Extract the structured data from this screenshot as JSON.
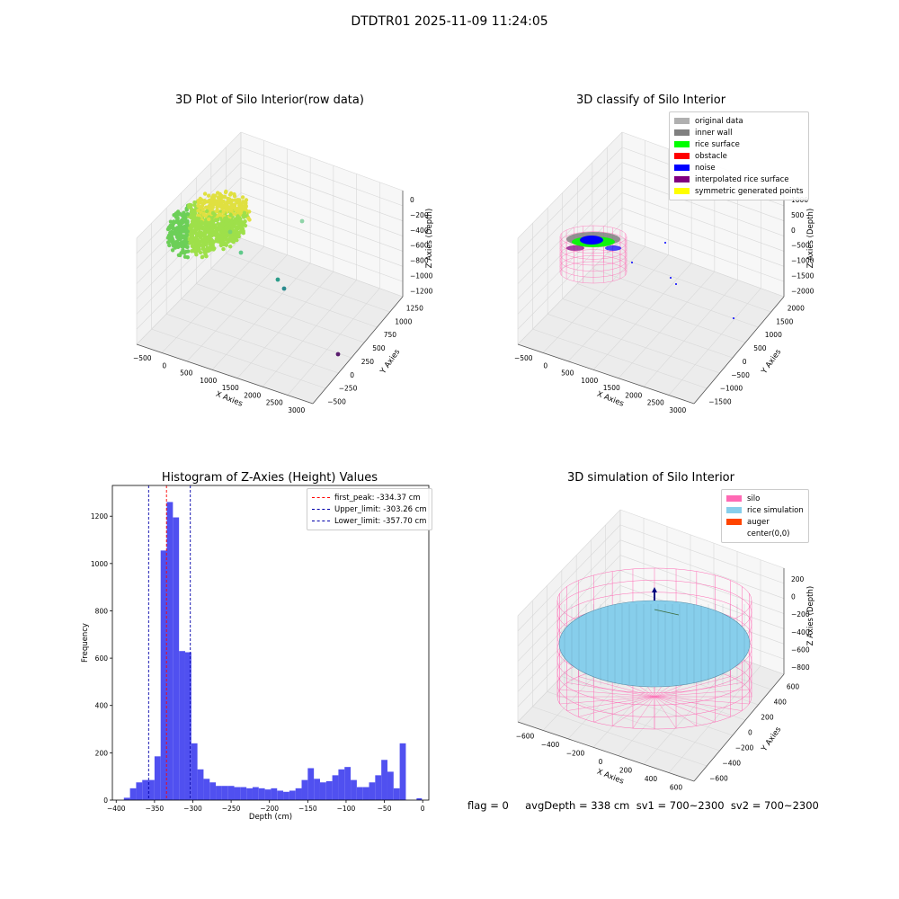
{
  "suptitle": "DTDTR01 2025-11-09 11:24:05",
  "footer": {
    "text": "flag = 0     avgDepth = 338 cm  sv1 = 700~2300  sv2 = 700~2300"
  },
  "colors": {
    "histogram_bar": "#5050f0",
    "first_peak_line": "#ff0000",
    "limit_line": "#0000aa",
    "silo_wire": "#ff69b4",
    "rice_surface_sim": "#87ceeb",
    "pane_face": "#f2f2f2",
    "grid": "#d8d8d8"
  },
  "chart_data": [
    {
      "type": "scatter",
      "title": "3D Plot of Silo Interior(row data)",
      "projection": "3d",
      "xlabel": "X Axies",
      "ylabel": "Y Axies",
      "zlabel": "Z Axies (Depth)",
      "x_ticks": [
        "−500",
        "0",
        "500",
        "1000",
        "1500",
        "2000",
        "2500",
        "3000"
      ],
      "y_ticks": [
        "−500",
        "−250",
        "0",
        "250",
        "500",
        "750",
        "1000",
        "1250"
      ],
      "z_ticks": [
        "0",
        "−200",
        "−400",
        "−600",
        "−800",
        "−1000",
        "−1200"
      ],
      "xlim": [
        -600,
        3200
      ],
      "ylim": [
        -600,
        1350
      ],
      "zlim": [
        -1300,
        50
      ],
      "colormap": "viridis",
      "points": [
        [
          -350,
          600,
          -350
        ],
        [
          -250,
          700,
          -330
        ],
        [
          -150,
          650,
          -320
        ],
        [
          0,
          550,
          -340
        ],
        [
          100,
          480,
          -350
        ],
        [
          -300,
          400,
          -360
        ],
        [
          -400,
          450,
          -370
        ],
        [
          -200,
          300,
          -350
        ],
        [
          300,
          600,
          -330
        ],
        [
          500,
          900,
          -300
        ],
        [
          700,
          500,
          -280
        ],
        [
          1300,
          1000,
          -900
        ],
        [
          1600,
          700,
          -1050
        ],
        [
          2600,
          500,
          -1250
        ]
      ]
    },
    {
      "type": "scatter",
      "title": "3D classify of Silo Interior",
      "projection": "3d",
      "xlabel": "X Axies",
      "ylabel": "Y Axies",
      "zlabel": "Z Axies (Depth)",
      "x_ticks": [
        "−500",
        "0",
        "500",
        "1000",
        "1500",
        "2000",
        "2500",
        "3000"
      ],
      "y_ticks": [
        "−1500",
        "−1000",
        "−500",
        "0",
        "500",
        "1000",
        "1500",
        "2000"
      ],
      "z_ticks": [
        "1000",
        "500",
        "0",
        "−500",
        "−1000",
        "−1500",
        "−2000"
      ],
      "xlim": [
        -600,
        3200
      ],
      "ylim": [
        -1600,
        2100
      ],
      "zlim": [
        -2200,
        1100
      ],
      "legend": [
        {
          "label": "original data",
          "color": "#b0b0b0"
        },
        {
          "label": "inner wall",
          "color": "#808080"
        },
        {
          "label": "rice surface",
          "color": "#00ff00"
        },
        {
          "label": "obstacle",
          "color": "#ff0000"
        },
        {
          "label": "noise",
          "color": "#0000ff"
        },
        {
          "label": "interpolated rice surface",
          "color": "#800080"
        },
        {
          "label": "symmetric generated points",
          "color": "#ffff00"
        }
      ]
    },
    {
      "type": "bar",
      "title": "Histogram of Z-Axies (Height) Values",
      "xlabel": "Depth (cm)",
      "ylabel": "Frequency",
      "xlim": [
        -405,
        8
      ],
      "ylim": [
        0,
        1330
      ],
      "x_ticks": [
        "−400",
        "−350",
        "−300",
        "−250",
        "−200",
        "−150",
        "−100",
        "−50",
        "0"
      ],
      "x_tick_values": [
        -400,
        -350,
        -300,
        -250,
        -200,
        -150,
        -100,
        -50,
        0
      ],
      "y_ticks": [
        "0",
        "200",
        "400",
        "600",
        "800",
        "1000",
        "1200"
      ],
      "y_tick_values": [
        0,
        200,
        400,
        600,
        800,
        1000,
        1200
      ],
      "bin_edges": [
        -390,
        -382,
        -374,
        -366,
        -358,
        -350,
        -342,
        -334,
        -326,
        -318,
        -310,
        -302,
        -294,
        -286,
        -278,
        -270,
        -262,
        -254,
        -246,
        -238,
        -230,
        -222,
        -214,
        -206,
        -198,
        -190,
        -182,
        -174,
        -166,
        -158,
        -150,
        -142,
        -134,
        -126,
        -118,
        -110,
        -102,
        -94,
        -86,
        -78,
        -70,
        -62,
        -54,
        -46,
        -38,
        -30,
        -22
      ],
      "values": [
        10,
        50,
        75,
        85,
        85,
        185,
        1055,
        1260,
        1195,
        630,
        625,
        240,
        130,
        90,
        75,
        60,
        60,
        60,
        55,
        55,
        50,
        55,
        50,
        45,
        50,
        40,
        35,
        40,
        50,
        85,
        135,
        90,
        75,
        80,
        105,
        130,
        140,
        85,
        55,
        55,
        75,
        105,
        170,
        120,
        50,
        240,
        45
      ],
      "extra_bars": [
        {
          "x0": -8,
          "x1": -1,
          "value": 8
        }
      ],
      "lines": [
        {
          "label": "first_peak: -334.37 cm",
          "x": -334.37,
          "color": "#ff0000"
        },
        {
          "label": "Upper_limit: -303.26 cm",
          "x": -303.26,
          "color": "#0000aa"
        },
        {
          "label": "Lower_limit: -357.70 cm",
          "x": -357.7,
          "color": "#0000aa"
        }
      ]
    },
    {
      "type": "surface",
      "title": "3D simulation of Silo Interior",
      "projection": "3d",
      "xlabel": "X Axies",
      "ylabel": "Y Axies",
      "zlabel": "Z Axies (Depth)",
      "x_ticks": [
        "−600",
        "−400",
        "−200",
        "0",
        "200",
        "400",
        "600"
      ],
      "y_ticks": [
        "−600",
        "−400",
        "−200",
        "0",
        "200",
        "400",
        "600"
      ],
      "z_ticks": [
        "200",
        "0",
        "−200",
        "−400",
        "−600",
        "−800"
      ],
      "xlim": [
        -650,
        650
      ],
      "ylim": [
        -650,
        650
      ],
      "zlim": [
        -950,
        300
      ],
      "silo_radius": 600,
      "rice_depth": -338,
      "legend": [
        {
          "label": "silo",
          "color": "#ff69b4"
        },
        {
          "label": "rice simulation",
          "color": "#87ceeb"
        },
        {
          "label": "auger",
          "color": "#ff4500"
        },
        {
          "label": "center(0,0)",
          "color": null
        }
      ]
    }
  ]
}
